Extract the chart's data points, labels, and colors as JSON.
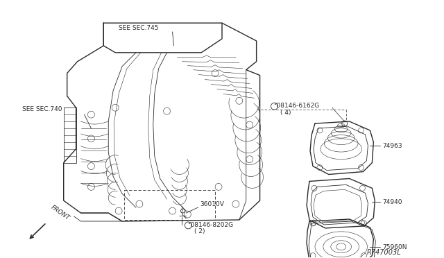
{
  "bg_color": "#ffffff",
  "line_color": "#2a2a2a",
  "labels": {
    "see_sec_745": "SEE SEC.745",
    "see_sec_740": "SEE SEC.740",
    "part_08146_6162G_line1": "°08146-6162G",
    "part_08146_6162G_line2": "( 4)",
    "part_36010V": "36010V",
    "part_08146_8202G_line1": "°08146-8202G",
    "part_08146_8202G_line2": "( 2)",
    "part_74963": "74963",
    "part_74940": "74940",
    "part_75960N": "75960N",
    "ref_code": "R747003L",
    "front_label": "FRONT"
  },
  "font_size": 6.5,
  "font_size_ref": 7
}
